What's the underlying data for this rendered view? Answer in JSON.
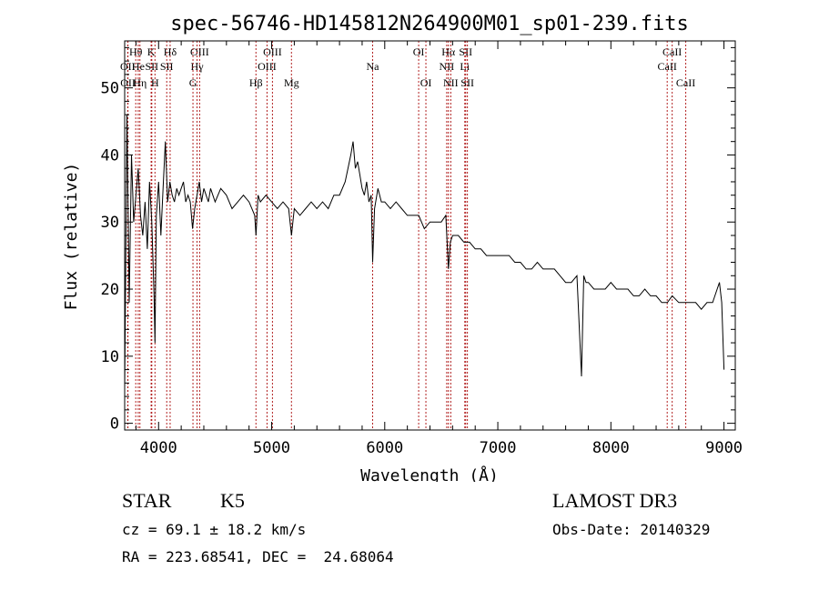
{
  "chart_data": {
    "type": "line",
    "title": "spec-56746-HD145812N264900M01_sp01-239.fits",
    "xlabel": "Wavelength (Å)",
    "ylabel": "Flux (relative)",
    "xlim": [
      3700,
      9100
    ],
    "ylim": [
      -1,
      57
    ],
    "xticks": [
      4000,
      5000,
      6000,
      7000,
      8000,
      9000
    ],
    "yticks": [
      0,
      10,
      20,
      30,
      40,
      50
    ],
    "grid": false,
    "line_color": "#000000",
    "marker_color": "#b22222",
    "spectrum": {
      "x": [
        3700,
        3720,
        3740,
        3760,
        3780,
        3800,
        3820,
        3840,
        3860,
        3880,
        3900,
        3920,
        3940,
        3960,
        3968,
        3980,
        4000,
        4020,
        4040,
        4060,
        4080,
        4100,
        4120,
        4140,
        4160,
        4180,
        4200,
        4220,
        4240,
        4260,
        4280,
        4300,
        4320,
        4340,
        4360,
        4380,
        4400,
        4420,
        4440,
        4460,
        4480,
        4500,
        4550,
        4600,
        4650,
        4700,
        4750,
        4800,
        4850,
        4861,
        4880,
        4900,
        4950,
        5000,
        5050,
        5100,
        5150,
        5175,
        5200,
        5250,
        5300,
        5350,
        5400,
        5450,
        5500,
        5550,
        5600,
        5650,
        5700,
        5720,
        5740,
        5760,
        5780,
        5800,
        5820,
        5840,
        5860,
        5880,
        5893,
        5910,
        5940,
        5970,
        6000,
        6050,
        6100,
        6150,
        6200,
        6250,
        6300,
        6350,
        6400,
        6450,
        6500,
        6540,
        6563,
        6580,
        6600,
        6650,
        6700,
        6750,
        6800,
        6850,
        6900,
        6950,
        7000,
        7050,
        7100,
        7150,
        7200,
        7250,
        7300,
        7350,
        7400,
        7450,
        7500,
        7550,
        7600,
        7650,
        7700,
        7740,
        7760,
        7780,
        7800,
        7850,
        7900,
        7950,
        8000,
        8050,
        8100,
        8150,
        8200,
        8250,
        8300,
        8350,
        8400,
        8450,
        8500,
        8542,
        8600,
        8650,
        8700,
        8750,
        8800,
        8850,
        8900,
        8940,
        8960,
        8980,
        9000
      ],
      "y": [
        5,
        46,
        18,
        40,
        30,
        34,
        38,
        31,
        28,
        33,
        26,
        36,
        30,
        19,
        12,
        31,
        36,
        28,
        35,
        42,
        33,
        36,
        34,
        33,
        35,
        34,
        35,
        36,
        33,
        34,
        33,
        29,
        32,
        34,
        36,
        33,
        35,
        34,
        33,
        35,
        34,
        33,
        35,
        34,
        32,
        33,
        34,
        33,
        31,
        28,
        34,
        33,
        34,
        33,
        32,
        33,
        32,
        28,
        32,
        31,
        32,
        33,
        32,
        33,
        32,
        34,
        34,
        36,
        40,
        42,
        38,
        39,
        37,
        35,
        34,
        36,
        33,
        34,
        24,
        32,
        35,
        33,
        33,
        32,
        33,
        32,
        31,
        31,
        31,
        29,
        30,
        30,
        30,
        31,
        23,
        27,
        28,
        28,
        27,
        27,
        26,
        26,
        25,
        25,
        25,
        25,
        25,
        24,
        24,
        23,
        23,
        24,
        23,
        23,
        23,
        22,
        21,
        21,
        22,
        7,
        22,
        21,
        21,
        20,
        20,
        20,
        21,
        20,
        20,
        20,
        19,
        19,
        20,
        19,
        19,
        18,
        18,
        19,
        18,
        18,
        18,
        18,
        17,
        18,
        18,
        20,
        21,
        18,
        8
      ]
    },
    "line_markers": [
      {
        "label": "OII",
        "wavelength": 3727,
        "row": 2
      },
      {
        "label": "OII",
        "wavelength": 3729,
        "row": 3
      },
      {
        "label": "Hθ",
        "wavelength": 3798,
        "row": 1
      },
      {
        "label": "He",
        "wavelength": 3820,
        "row": 2
      },
      {
        "label": "Hη",
        "wavelength": 3835,
        "row": 3
      },
      {
        "label": "K",
        "wavelength": 3934,
        "row": 1
      },
      {
        "label": "SII",
        "wavelength": 3940,
        "row": 2
      },
      {
        "label": "H",
        "wavelength": 3968,
        "row": 3
      },
      {
        "label": "Hδ",
        "wavelength": 4102,
        "row": 1
      },
      {
        "label": "SII",
        "wavelength": 4072,
        "row": 2
      },
      {
        "label": "OIII",
        "wavelength": 4363,
        "row": 1
      },
      {
        "label": "Hγ",
        "wavelength": 4340,
        "row": 2
      },
      {
        "label": "G",
        "wavelength": 4304,
        "row": 3
      },
      {
        "label": "OIII",
        "wavelength": 5007,
        "row": 1
      },
      {
        "label": "OIII",
        "wavelength": 4959,
        "row": 2
      },
      {
        "label": "Hβ",
        "wavelength": 4861,
        "row": 3
      },
      {
        "label": "Mg",
        "wavelength": 5175,
        "row": 3
      },
      {
        "label": "Na",
        "wavelength": 5893,
        "row": 2
      },
      {
        "label": "OI",
        "wavelength": 6300,
        "row": 1
      },
      {
        "label": "OI",
        "wavelength": 6364,
        "row": 3
      },
      {
        "label": "Hα",
        "wavelength": 6563,
        "row": 1
      },
      {
        "label": "NII",
        "wavelength": 6548,
        "row": 2
      },
      {
        "label": "NII",
        "wavelength": 6584,
        "row": 3
      },
      {
        "label": "SII",
        "wavelength": 6716,
        "row": 1
      },
      {
        "label": "Li",
        "wavelength": 6708,
        "row": 2
      },
      {
        "label": "SII",
        "wavelength": 6731,
        "row": 3
      },
      {
        "label": "CaII",
        "wavelength": 8542,
        "row": 1
      },
      {
        "label": "CaII",
        "wavelength": 8498,
        "row": 2
      },
      {
        "label": "CaII",
        "wavelength": 8662,
        "row": 3
      }
    ]
  },
  "info": {
    "class": "STAR",
    "subclass": "K5",
    "survey": "LAMOST DR3",
    "cz": "cz = 69.1 ± 18.2 km/s",
    "obs_date": "Obs-Date: 20140329",
    "coords": "RA = 223.68541, DEC =  24.68064"
  }
}
